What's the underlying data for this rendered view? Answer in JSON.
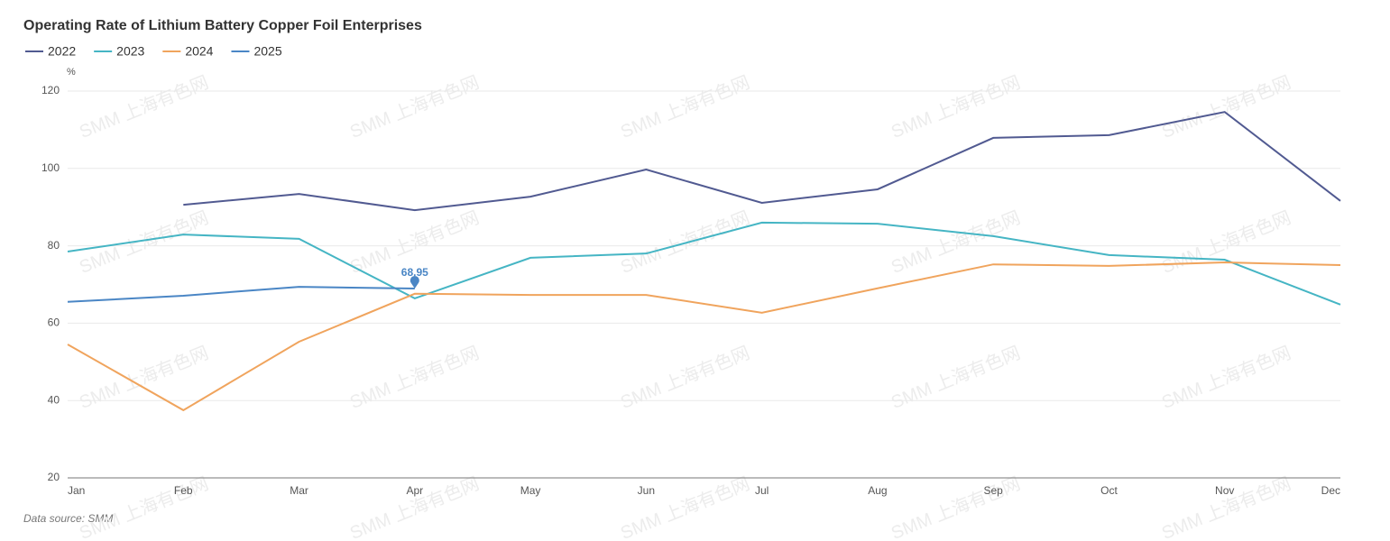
{
  "chart_data": {
    "type": "line",
    "title": "Operating Rate of Lithium Battery Copper Foil Enterprises",
    "y_unit": "%",
    "source": "Data source:  SMM",
    "watermark": "SMM 上海有色网",
    "categories": [
      "Jan",
      "Feb",
      "Mar",
      "Apr",
      "May",
      "Jun",
      "Jul",
      "Aug",
      "Sep",
      "Oct",
      "Nov",
      "Dec"
    ],
    "series": [
      {
        "name": "2022",
        "color": "#515a91",
        "values": [
          null,
          90.6,
          93.4,
          89.2,
          92.7,
          99.7,
          91.1,
          94.6,
          107.9,
          108.6,
          114.6,
          91.6
        ]
      },
      {
        "name": "2023",
        "color": "#45b5c4",
        "values": [
          78.5,
          82.9,
          81.8,
          66.4,
          76.9,
          78.0,
          86.0,
          85.7,
          82.5,
          77.6,
          76.4,
          64.8
        ]
      },
      {
        "name": "2024",
        "color": "#f0a45d",
        "values": [
          54.5,
          37.5,
          55.2,
          67.6,
          67.3,
          67.3,
          62.7,
          69.0,
          75.2,
          74.8,
          75.7,
          75.0
        ]
      },
      {
        "name": "2025",
        "color": "#4a86c5",
        "values": [
          65.5,
          67.1,
          69.4,
          68.95,
          null,
          null,
          null,
          null,
          null,
          null,
          null,
          null
        ]
      }
    ],
    "ylim": [
      20,
      120
    ],
    "yticks": [
      20,
      40,
      60,
      80,
      100,
      120
    ],
    "grid": true
  }
}
